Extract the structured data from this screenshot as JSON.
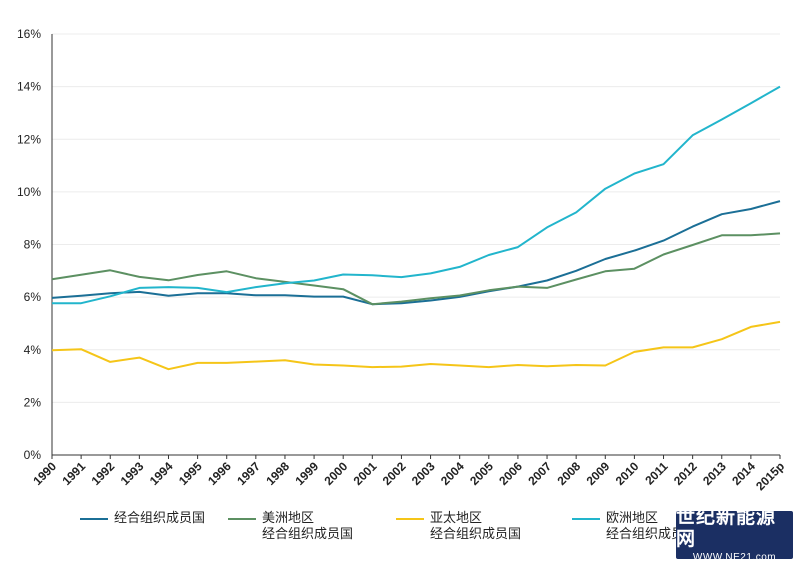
{
  "chart_data": {
    "type": "line",
    "title": "",
    "xlabel": "",
    "ylabel": "",
    "categories": [
      "1990",
      "1991",
      "1992",
      "1993",
      "1994",
      "1995",
      "1996",
      "1997",
      "1998",
      "1999",
      "2000",
      "2001",
      "2002",
      "2003",
      "2004",
      "2005",
      "2006",
      "2007",
      "2008",
      "2009",
      "2010",
      "2011",
      "2012",
      "2013",
      "2014",
      "2015p"
    ],
    "ylim": [
      0,
      16
    ],
    "yticks": [
      "0%",
      "2%",
      "4%",
      "6%",
      "8%",
      "10%",
      "12%",
      "14%",
      "16%"
    ],
    "grid": true,
    "legend_position": "bottom",
    "series": [
      {
        "name": "经合组织成员国",
        "color": "#1b6f96",
        "values": [
          5.97,
          6.05,
          6.15,
          6.2,
          6.05,
          6.15,
          6.15,
          6.07,
          6.07,
          6.02,
          6.02,
          5.73,
          5.77,
          5.87,
          6.01,
          6.22,
          6.4,
          6.63,
          7.0,
          7.45,
          7.77,
          8.15,
          8.68,
          9.15,
          9.35,
          9.65
        ]
      },
      {
        "name": "美洲地区\n经合组织成员国",
        "color": "#5c9062",
        "values": [
          6.68,
          6.85,
          7.02,
          6.77,
          6.64,
          6.84,
          6.98,
          6.72,
          6.58,
          6.44,
          6.3,
          5.73,
          5.83,
          5.96,
          6.06,
          6.26,
          6.4,
          6.35,
          6.67,
          6.98,
          7.08,
          7.62,
          7.98,
          8.35,
          8.35,
          8.42
        ]
      },
      {
        "name": "亚太地区\n经合组织成员国",
        "color": "#f5c518",
        "values": [
          3.98,
          4.02,
          3.54,
          3.7,
          3.26,
          3.5,
          3.5,
          3.55,
          3.6,
          3.44,
          3.4,
          3.34,
          3.36,
          3.46,
          3.4,
          3.34,
          3.42,
          3.37,
          3.42,
          3.4,
          3.92,
          4.09,
          4.09,
          4.4,
          4.87,
          5.06
        ]
      },
      {
        "name": "欧洲地区\n经合组织成员国",
        "color": "#22b5cc",
        "values": [
          5.77,
          5.77,
          6.03,
          6.35,
          6.38,
          6.35,
          6.19,
          6.38,
          6.53,
          6.63,
          6.86,
          6.83,
          6.76,
          6.9,
          7.15,
          7.6,
          7.9,
          8.65,
          9.22,
          10.12,
          10.7,
          11.05,
          12.15,
          12.75,
          13.37,
          14.0
        ]
      }
    ]
  },
  "watermark": {
    "title": "世纪新能源网",
    "url": "WWW.NE21.com"
  }
}
